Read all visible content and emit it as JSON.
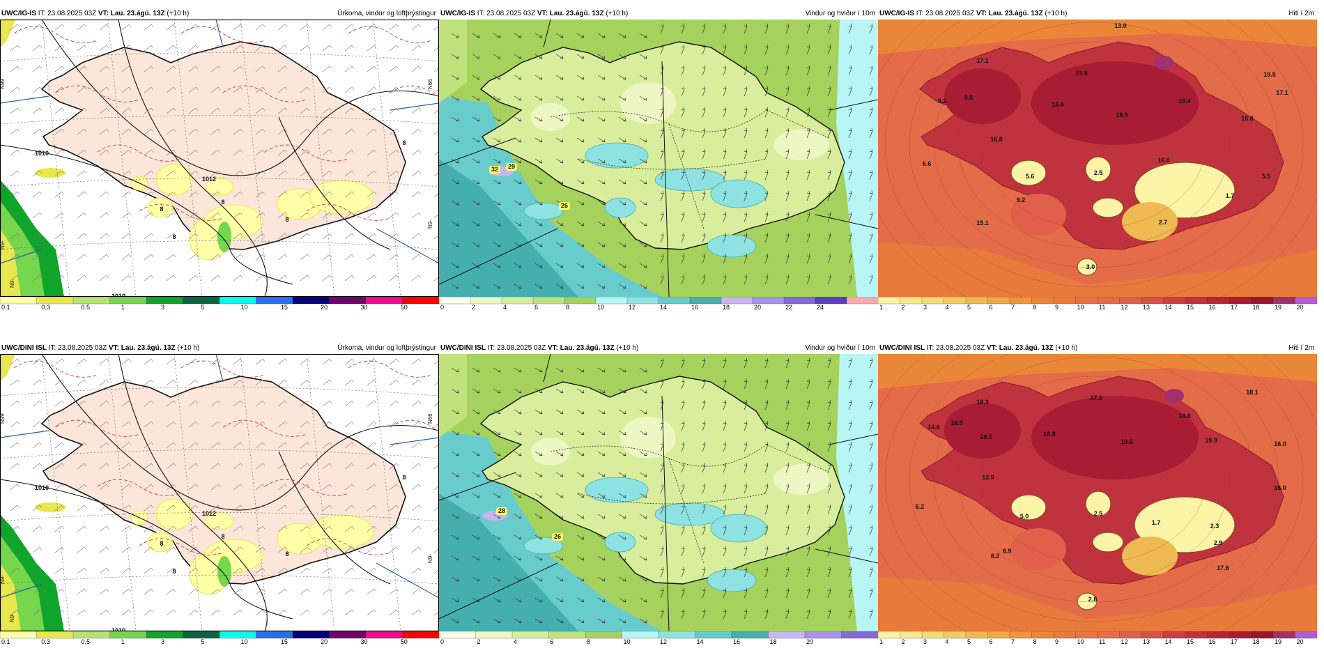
{
  "rows": [
    {
      "panels": [
        {
          "type": "precip",
          "model": "UWC/IG-IS",
          "it_label": "IT:",
          "it_value": "23.08.2025 03Z",
          "vt_label": "VT:",
          "vt_value": "Lau. 23.ágú. 13Z",
          "lead": "(+10 h)",
          "title": "Úrkoma, vindur og loftþrýstingur",
          "edge_labels": [
            "N99",
            "N9-",
            "N9-",
            "N66",
            "N9-"
          ],
          "values": [
            "1010",
            "1012",
            "1010",
            "8",
            "8",
            "8",
            "8",
            "8"
          ]
        },
        {
          "type": "wind",
          "model": "UWC/IG-IS",
          "it_label": "IT:",
          "it_value": "23.08.2025 03Z",
          "vt_label": "VT:",
          "vt_value": "Lau. 23.ágú. 13Z",
          "lead": "(+10 h)",
          "title": "Vindur og hviður í 10m",
          "values": [
            "32",
            "29",
            "26"
          ]
        },
        {
          "type": "temp",
          "model": "UWC/IG-IS",
          "it_label": "IT:",
          "it_value": "23.08.2025 03Z",
          "vt_label": "VT:",
          "vt_value": "Lau. 23.ágú. 13Z",
          "lead": "(+10 h)",
          "title": "Hiti í 2m",
          "values": [
            "13.0",
            "17.1",
            "19.8",
            "19.9",
            "17.1",
            "9.2",
            "9.5",
            "18.4",
            "19.9",
            "19.4",
            "16.8",
            "16.8",
            "6.6",
            "16.0",
            "5.6",
            "2.5",
            "5.5",
            "9.2",
            "1.7",
            "15.1",
            "2.7",
            "3.0"
          ]
        }
      ]
    },
    {
      "panels": [
        {
          "type": "precip",
          "model": "UWC/DINI ISL",
          "it_label": "IT:",
          "it_value": "23.08.2025 03Z",
          "vt_label": "VT:",
          "vt_value": "Lau. 23.ágú. 13Z",
          "lead": "(+10 h)",
          "title": "Úrkoma, vindur og loftþrýstingur",
          "edge_labels": [
            "N99",
            "N9-",
            "N9-",
            "N66",
            "N9-"
          ],
          "values": [
            "1010",
            "1012",
            "1010",
            "8",
            "8",
            "8",
            "8",
            "8"
          ]
        },
        {
          "type": "wind",
          "model": "UWC/DINI ISL",
          "it_label": "IT:",
          "it_value": "23.08.2025 03Z",
          "vt_label": "VT:",
          "vt_value": "Lau. 23.ágú. 13Z",
          "lead": "(+10 h)",
          "title": "Vindur og hviður í 10m",
          "values": [
            "28",
            "26"
          ]
        },
        {
          "type": "temp",
          "model": "UWC/DINI ISL",
          "it_label": "IT:",
          "it_value": "23.08.2025 03Z",
          "vt_label": "VT:",
          "vt_value": "Lau. 23.ágú. 13Z",
          "lead": "(+10 h)",
          "title": "Hiti í 2m",
          "values": [
            "18.3",
            "17.2",
            "18.1",
            "14.6",
            "16.5",
            "14.8",
            "16.0",
            "18.8",
            "18.6",
            "19.9",
            "19.0",
            "16.0",
            "6.2",
            "5.0",
            "2.5",
            "1.7",
            "2.3",
            "12.9",
            "8.9",
            "17.6",
            "8.2",
            "2.9",
            "2.8"
          ]
        }
      ]
    }
  ],
  "colorbars": {
    "precip": {
      "labels": [
        "0.1",
        "0.3",
        "0.5",
        "1",
        "3",
        "5",
        "10",
        "15",
        "20",
        "30",
        "50"
      ],
      "colors": [
        "#ffffa8",
        "#e8e84e",
        "#b5e36f",
        "#76d64e",
        "#0ea52a",
        "#0a6640",
        "#00ffee",
        "#2a6ef0",
        "#04007d",
        "#6f046c",
        "#f00a8e",
        "#ff0000"
      ]
    },
    "wind_top": {
      "labels": [
        "0",
        "2",
        "4",
        "6",
        "8",
        "10",
        "12",
        "14",
        "16",
        "18",
        "20",
        "22",
        "24"
      ],
      "colors": [
        "#fdfde6",
        "#eef6c4",
        "#d8ee9c",
        "#bfe27c",
        "#a4d25c",
        "#b8f6f6",
        "#8ee2e2",
        "#68cccc",
        "#45aeae",
        "#c8b4f6",
        "#a890ee",
        "#8468dc",
        "#5c40c4",
        "#ffa8b0"
      ]
    },
    "wind_bottom": {
      "labels": [
        "0",
        "2",
        "4",
        "6",
        "8",
        "10",
        "12",
        "14",
        "16",
        "18",
        "20"
      ],
      "colors": [
        "#fdfde6",
        "#eef6c4",
        "#d8ee9c",
        "#bfe27c",
        "#a4d25c",
        "#b8f6f6",
        "#8ee2e2",
        "#68cccc",
        "#45aeae",
        "#c8b4f6",
        "#a890ee",
        "#8468dc"
      ]
    },
    "temp": {
      "labels": [
        "1",
        "2",
        "3",
        "4",
        "5",
        "6",
        "7",
        "8",
        "9",
        "10",
        "11",
        "12",
        "13",
        "14",
        "15",
        "16",
        "17",
        "18",
        "19",
        "20"
      ],
      "colors": [
        "#fbf4a6",
        "#f7e98e",
        "#f3dc76",
        "#f0cc62",
        "#eebb52",
        "#eda944",
        "#ec973c",
        "#ea8638",
        "#e87a3c",
        "#e77444",
        "#e56c48",
        "#e0604a",
        "#d6504a",
        "#cc4044",
        "#c0323e",
        "#b42638",
        "#a81c34",
        "#9a1430",
        "#a0306e",
        "#b060d0"
      ]
    }
  }
}
